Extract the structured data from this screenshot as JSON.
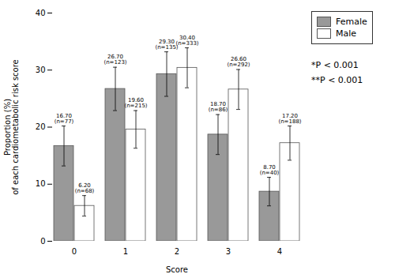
{
  "chart_data": {
    "type": "bar",
    "categories": [
      "0",
      "1",
      "2",
      "3",
      "4"
    ],
    "series": [
      {
        "name": "Female",
        "color": "#999999",
        "values": [
          16.7,
          26.7,
          29.3,
          18.7,
          8.7
        ],
        "errors": [
          3.5,
          3.8,
          3.9,
          3.5,
          2.5
        ],
        "value_labels": [
          "16.70\n(n=77)",
          "26.70\n(n=123)",
          "29.30\n(n=135)",
          "18.70\n(n=86)",
          "8.70\n(n=40)"
        ]
      },
      {
        "name": "Male",
        "color": "#ffffff",
        "values": [
          6.2,
          19.6,
          30.4,
          26.6,
          17.2
        ],
        "errors": [
          1.8,
          3.3,
          3.5,
          3.5,
          3.0
        ],
        "value_labels": [
          "6.20\n(n=68)",
          "19.60\n(n=215)",
          "30.40\n(n=333)",
          "26.60\n(n=292)",
          "17.20\n(n=188)"
        ]
      }
    ],
    "xlabel": "Score",
    "ylabel": "Proportion (%)\nof each cardiometabolic risk score",
    "ylim": [
      0,
      40
    ],
    "yticks": [
      0,
      10,
      20,
      30,
      40
    ],
    "data_labels": true,
    "grid": false,
    "legend": "right",
    "annotations": [
      "*P < 0.001",
      "**P < 0.001"
    ]
  }
}
